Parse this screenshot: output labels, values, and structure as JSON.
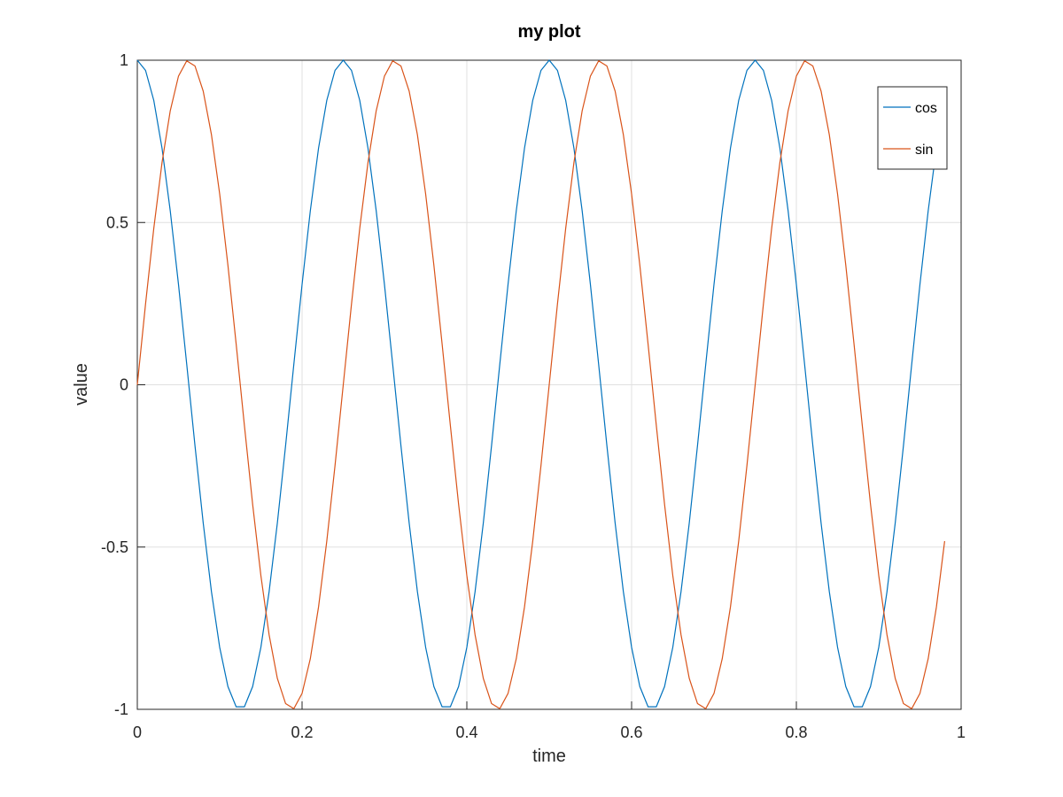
{
  "chart_data": {
    "type": "line",
    "title": "my plot",
    "xlabel": "time",
    "ylabel": "value",
    "xlim": [
      0,
      1
    ],
    "ylim": [
      -1,
      1
    ],
    "grid": true,
    "legend_position": "top-right",
    "xticks": [
      0,
      0.2,
      0.4,
      0.6,
      0.8,
      1
    ],
    "xtick_labels": [
      "0",
      "0.2",
      "0.4",
      "0.6",
      "0.8",
      "1"
    ],
    "yticks": [
      -1,
      -0.5,
      0,
      0.5,
      1
    ],
    "ytick_labels": [
      "-1",
      "-0.5",
      "0",
      "0.5",
      "1"
    ],
    "x": [
      0,
      0.01,
      0.02,
      0.03,
      0.04,
      0.05,
      0.06,
      0.07,
      0.08,
      0.09,
      0.1,
      0.11,
      0.12,
      0.13,
      0.14,
      0.15,
      0.16,
      0.17,
      0.18,
      0.19,
      0.2,
      0.21,
      0.22,
      0.23,
      0.24,
      0.25,
      0.26,
      0.27,
      0.28,
      0.29,
      0.3,
      0.31,
      0.32,
      0.33,
      0.34,
      0.35,
      0.36,
      0.37,
      0.38,
      0.39,
      0.4,
      0.41,
      0.42,
      0.43,
      0.44,
      0.45,
      0.46,
      0.47,
      0.48,
      0.49,
      0.5,
      0.51,
      0.52,
      0.53,
      0.54,
      0.55,
      0.56,
      0.57,
      0.58,
      0.59,
      0.6,
      0.61,
      0.62,
      0.63,
      0.64,
      0.65,
      0.66,
      0.67,
      0.68,
      0.69,
      0.7,
      0.71,
      0.72,
      0.73,
      0.74,
      0.75,
      0.76,
      0.77,
      0.78,
      0.79,
      0.8,
      0.81,
      0.82,
      0.83,
      0.84,
      0.85,
      0.86,
      0.87,
      0.88,
      0.89,
      0.9,
      0.91,
      0.92,
      0.93,
      0.94,
      0.95,
      0.96,
      0.97,
      0.98
    ],
    "series": [
      {
        "name": "cos",
        "color": "#0072bd",
        "values": [
          1.0,
          0.9686,
          0.8763,
          0.729,
          0.5358,
          0.309,
          0.0628,
          -0.1874,
          -0.4258,
          -0.6374,
          -0.809,
          -0.9298,
          -0.9921,
          -0.9921,
          -0.9298,
          -0.809,
          -0.6374,
          -0.4258,
          -0.1874,
          0.0628,
          0.309,
          0.5358,
          0.729,
          0.8763,
          0.9686,
          1.0,
          0.9686,
          0.8763,
          0.729,
          0.5358,
          0.309,
          0.0628,
          -0.1874,
          -0.4258,
          -0.6374,
          -0.809,
          -0.9298,
          -0.9921,
          -0.9921,
          -0.9298,
          -0.809,
          -0.6374,
          -0.4258,
          -0.1874,
          0.0628,
          0.309,
          0.5358,
          0.729,
          0.8763,
          0.9686,
          1.0,
          0.9686,
          0.8763,
          0.729,
          0.5358,
          0.309,
          0.0628,
          -0.1874,
          -0.4258,
          -0.6374,
          -0.809,
          -0.9298,
          -0.9921,
          -0.9921,
          -0.9298,
          -0.809,
          -0.6374,
          -0.4258,
          -0.1874,
          0.0628,
          0.309,
          0.5358,
          0.729,
          0.8763,
          0.9686,
          1.0,
          0.9686,
          0.8763,
          0.729,
          0.5358,
          0.309,
          0.0628,
          -0.1874,
          -0.4258,
          -0.6374,
          -0.809,
          -0.9298,
          -0.9921,
          -0.9921,
          -0.9298,
          -0.809,
          -0.6374,
          -0.4258,
          -0.1874,
          0.0628,
          0.309,
          0.5358,
          0.729,
          0.8763
        ]
      },
      {
        "name": "sin",
        "color": "#d95319",
        "values": [
          0.0,
          0.2487,
          0.4818,
          0.6845,
          0.8443,
          0.9511,
          0.998,
          0.9823,
          0.9048,
          0.7705,
          0.5878,
          0.3681,
          0.1253,
          -0.1253,
          -0.3681,
          -0.5878,
          -0.7705,
          -0.9048,
          -0.9823,
          -0.998,
          -0.9511,
          -0.8443,
          -0.6845,
          -0.4818,
          -0.2487,
          0.0,
          0.2487,
          0.4818,
          0.6845,
          0.8443,
          0.9511,
          0.998,
          0.9823,
          0.9048,
          0.7705,
          0.5878,
          0.3681,
          0.1253,
          -0.1253,
          -0.3681,
          -0.5878,
          -0.7705,
          -0.9048,
          -0.9823,
          -0.998,
          -0.9511,
          -0.8443,
          -0.6845,
          -0.4818,
          -0.2487,
          0.0,
          0.2487,
          0.4818,
          0.6845,
          0.8443,
          0.9511,
          0.998,
          0.9823,
          0.9048,
          0.7705,
          0.5878,
          0.3681,
          0.1253,
          -0.1253,
          -0.3681,
          -0.5878,
          -0.7705,
          -0.9048,
          -0.9823,
          -0.998,
          -0.9511,
          -0.8443,
          -0.6845,
          -0.4818,
          -0.2487,
          0.0,
          0.2487,
          0.4818,
          0.6845,
          0.8443,
          0.9511,
          0.998,
          0.9823,
          0.9048,
          0.7705,
          0.5878,
          0.3681,
          0.1253,
          -0.1253,
          -0.3681,
          -0.5878,
          -0.7705,
          -0.9048,
          -0.9823,
          -0.998,
          -0.9511,
          -0.8443,
          -0.6845,
          -0.4818
        ]
      }
    ]
  }
}
